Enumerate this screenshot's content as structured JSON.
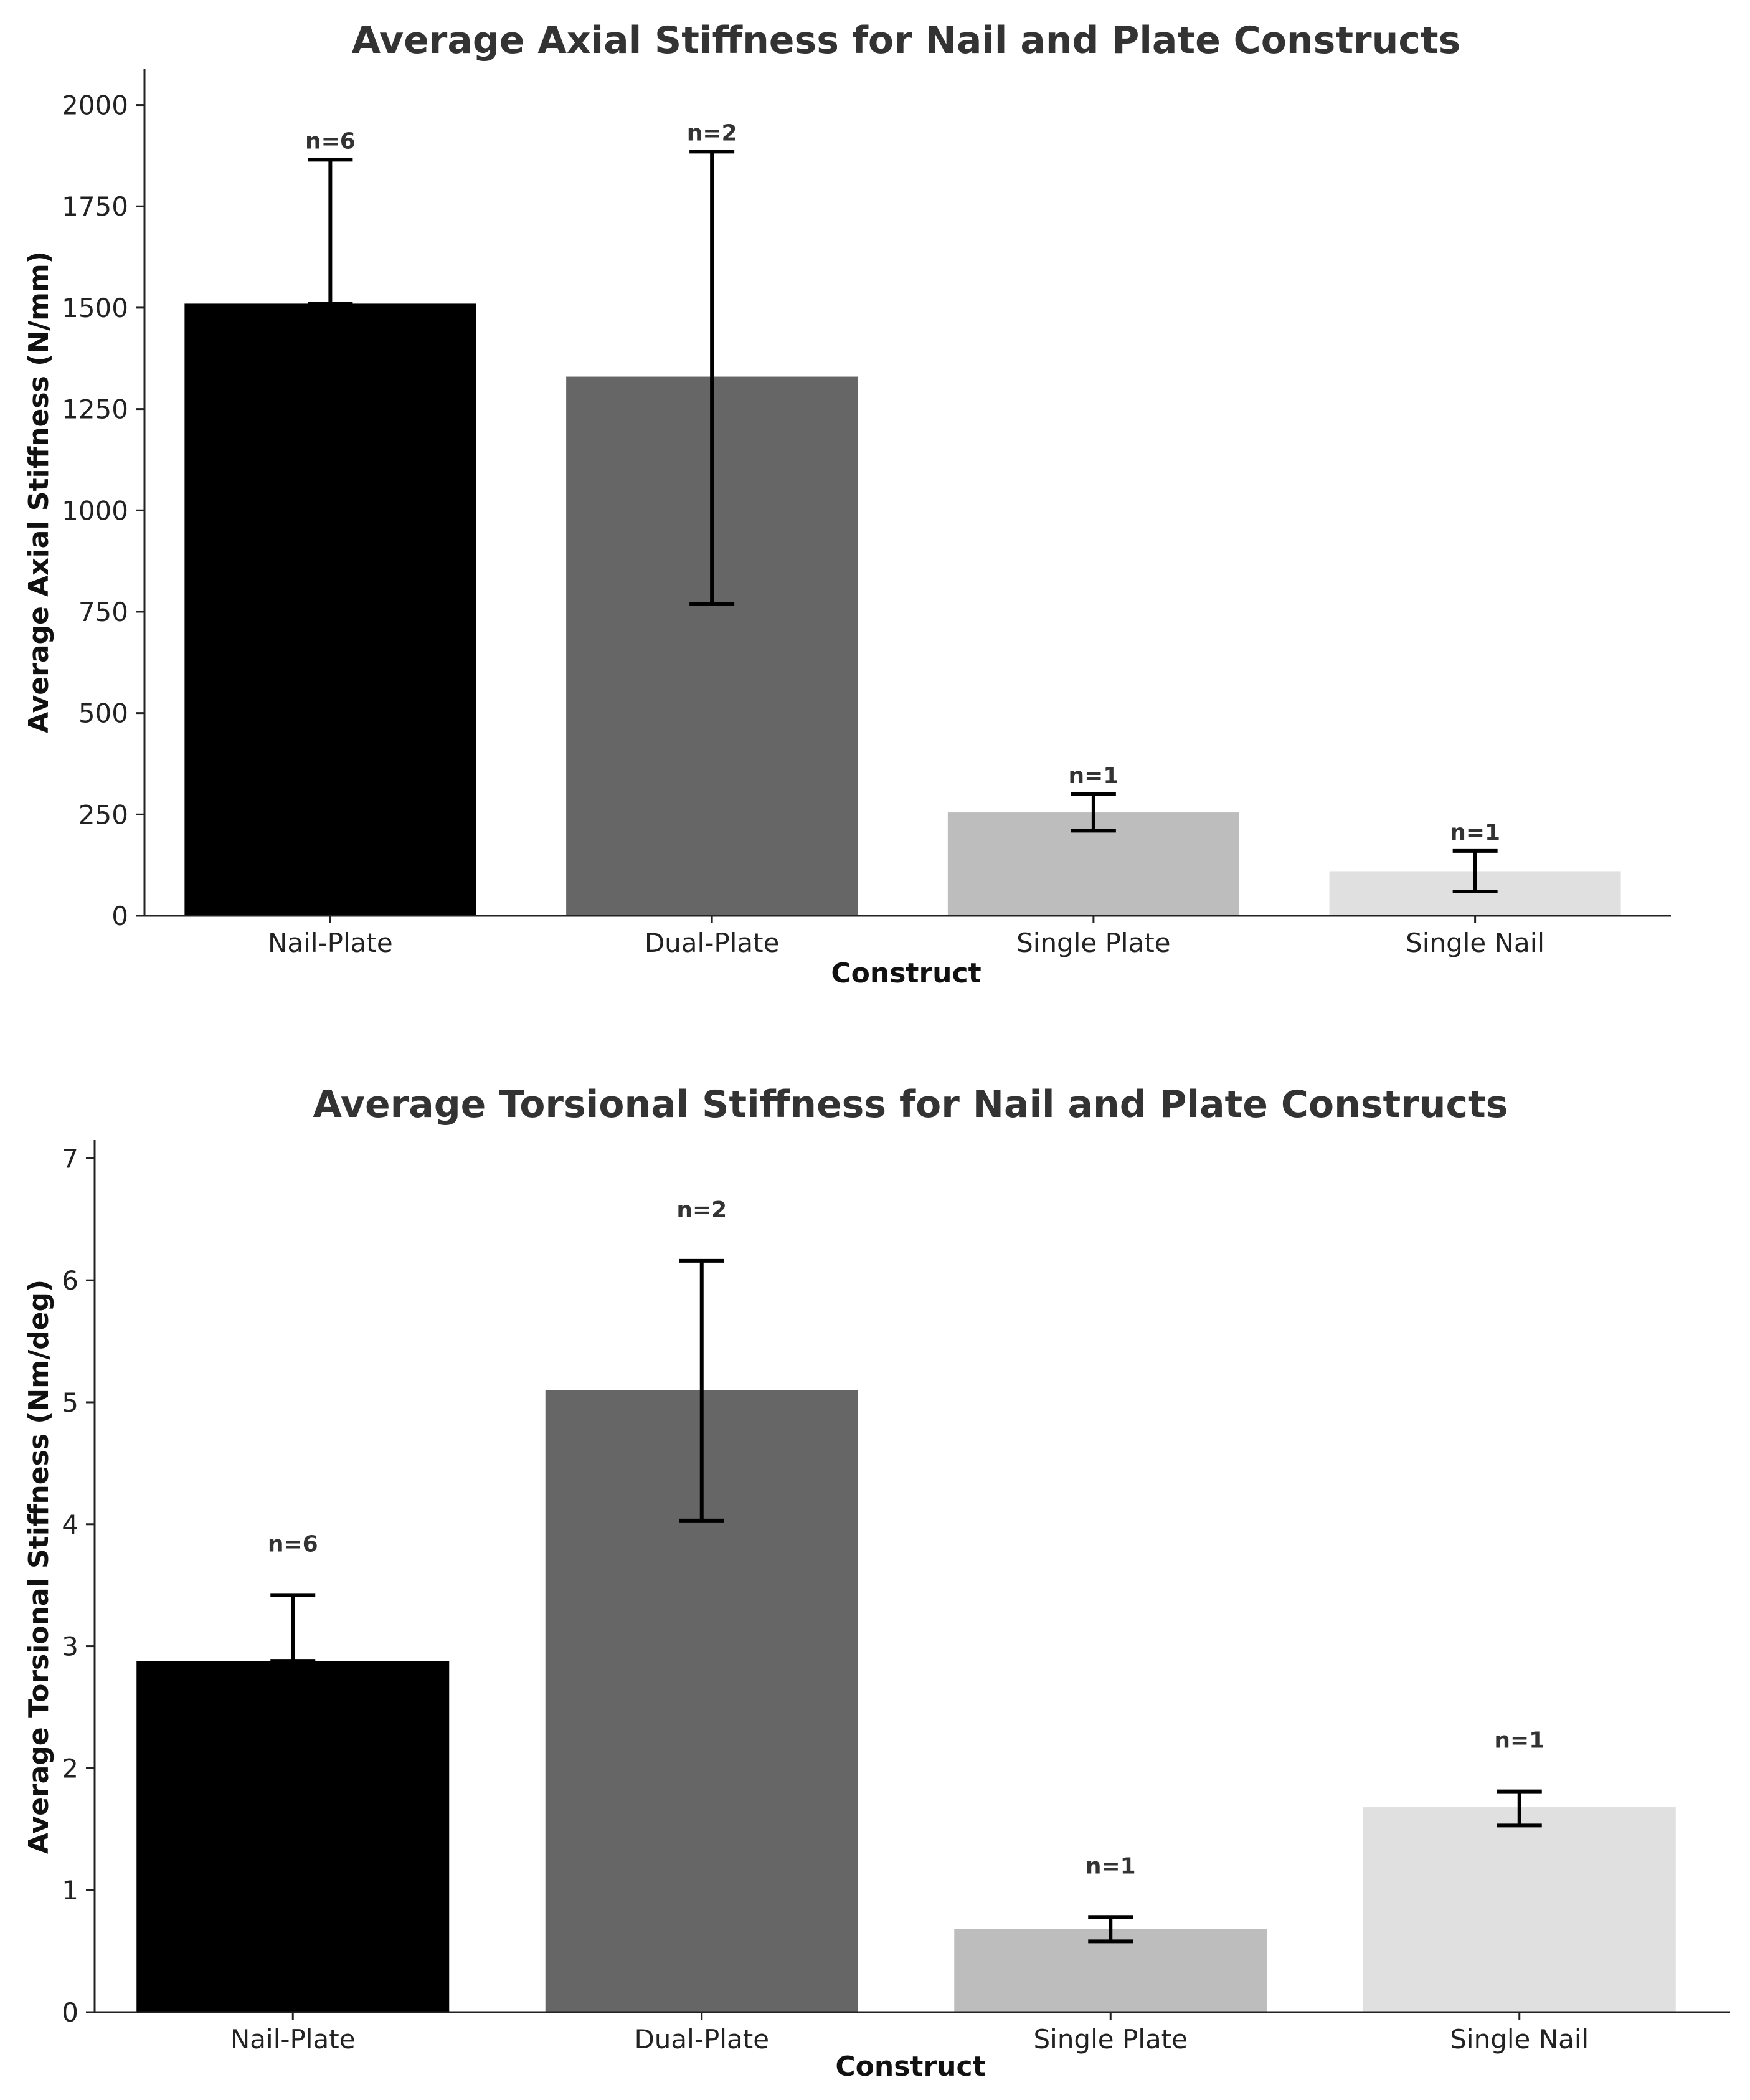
{
  "chart_data": [
    {
      "type": "bar",
      "title": "Average Axial Stiffness for Nail and Plate Constructs",
      "xlabel": "Construct",
      "ylabel": "Average Axial Stiffness (N/mm)",
      "categories": [
        "Nail-Plate",
        "Dual-Plate",
        "Single Plate",
        "Single Nail"
      ],
      "values": [
        1510,
        1330,
        255,
        110
      ],
      "error_low": [
        1510,
        770,
        210,
        60
      ],
      "error_high": [
        1865,
        1885,
        300,
        160
      ],
      "n_labels": [
        "n=6",
        "n=2",
        "n=1",
        "n=1"
      ],
      "ylim": [
        0,
        2090
      ],
      "yticks": [
        0,
        250,
        500,
        750,
        1000,
        1250,
        1500,
        1750,
        2000
      ],
      "colors": [
        "#000000",
        "#666666",
        "#bdbdbd",
        "#e0e0e0"
      ],
      "grid": false
    },
    {
      "type": "bar",
      "title": "Average Torsional Stiffness for Nail and Plate Constructs",
      "xlabel": "Construct",
      "ylabel": "Average Torsional Stiffness (Nm/deg)",
      "categories": [
        "Nail-Plate",
        "Dual-Plate",
        "Single Plate",
        "Single Nail"
      ],
      "values": [
        2.88,
        5.1,
        0.68,
        1.68
      ],
      "error_low": [
        2.88,
        4.03,
        0.58,
        1.53
      ],
      "error_high": [
        3.42,
        6.16,
        0.78,
        1.81
      ],
      "n_labels": [
        "n=6",
        "n=2",
        "n=1",
        "n=1"
      ],
      "ylim": [
        0,
        7.15
      ],
      "yticks": [
        0,
        1,
        2,
        3,
        4,
        5,
        6,
        7
      ],
      "colors": [
        "#000000",
        "#666666",
        "#bdbdbd",
        "#e0e0e0"
      ],
      "grid": false
    }
  ]
}
